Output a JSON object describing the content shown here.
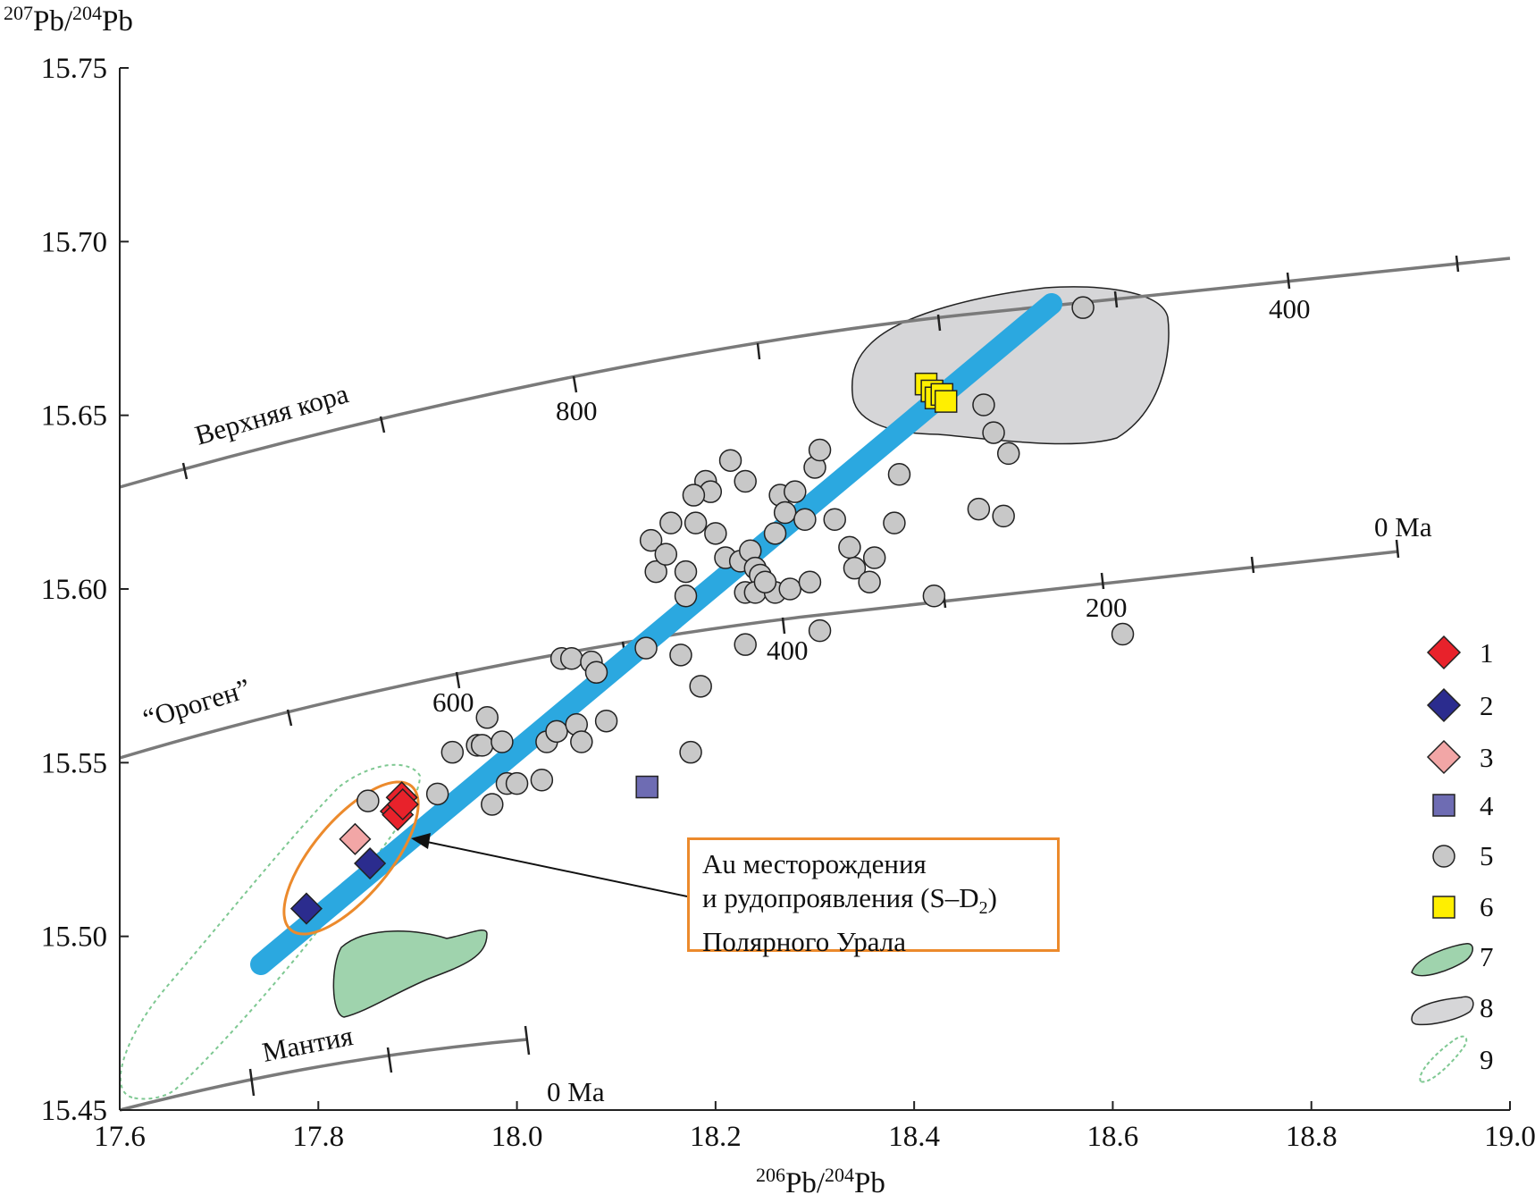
{
  "chart_data": {
    "type": "scatter",
    "xlabel": "206Pb/204Pb",
    "ylabel": "207Pb/204Pb",
    "xlabel_parts": {
      "sup": "206",
      "a": "Pb/",
      "sup2": "204",
      "b": "Pb"
    },
    "ylabel_parts": {
      "sup": "207",
      "a": "Pb/",
      "sup2": "204",
      "b": "Pb"
    },
    "xlim": [
      17.6,
      19.0
    ],
    "ylim": [
      15.45,
      15.75
    ],
    "x_ticks": [
      "17.6",
      "17.8",
      "18.0",
      "18.2",
      "18.4",
      "18.6",
      "18.8",
      "19.0"
    ],
    "y_ticks": [
      "15.45",
      "15.50",
      "15.55",
      "15.60",
      "15.65",
      "15.70",
      "15.75"
    ],
    "grid": false,
    "legend_position": "right",
    "series": [
      {
        "name": "1",
        "marker": "diamond",
        "color": "#e8222b",
        "x": [
          17.884,
          17.878,
          17.88,
          17.885
        ],
        "y": [
          15.54,
          15.536,
          15.535,
          15.538
        ]
      },
      {
        "name": "2",
        "marker": "diamond",
        "color": "#2b2c8e",
        "x": [
          17.788,
          17.852
        ],
        "y": [
          15.508,
          15.521
        ]
      },
      {
        "name": "3",
        "marker": "diamond",
        "color": "#f2a6a6",
        "x": [
          17.837
        ],
        "y": [
          15.528
        ]
      },
      {
        "name": "4",
        "marker": "square",
        "color": "#6e6cb3",
        "x": [
          18.131
        ],
        "y": [
          15.543
        ]
      },
      {
        "name": "5",
        "marker": "circle",
        "color": "#c8c8c8",
        "x": [
          17.85,
          17.92,
          17.935,
          17.96,
          17.965,
          17.97,
          17.975,
          17.985,
          17.99,
          18.0,
          18.025,
          18.03,
          18.04,
          18.045,
          18.055,
          18.06,
          18.065,
          18.075,
          18.08,
          18.09,
          18.13,
          18.135,
          18.14,
          18.15,
          18.155,
          18.165,
          18.17,
          18.175,
          18.18,
          18.185,
          18.19,
          18.195,
          18.2,
          18.21,
          18.215,
          18.225,
          18.23,
          18.235,
          18.24,
          18.245,
          18.23,
          18.24,
          18.23,
          18.26,
          18.265,
          18.27,
          18.26,
          18.275,
          18.28,
          18.29,
          18.295,
          18.3,
          18.305,
          18.32,
          18.335,
          18.34,
          18.355,
          18.36,
          18.38,
          18.385,
          18.42,
          18.465,
          18.47,
          18.48,
          18.49,
          18.495,
          18.57,
          18.61,
          18.178,
          18.17,
          18.305,
          18.25
        ],
        "y": [
          15.539,
          15.541,
          15.553,
          15.555,
          15.555,
          15.563,
          15.538,
          15.556,
          15.544,
          15.544,
          15.545,
          15.556,
          15.559,
          15.58,
          15.58,
          15.561,
          15.556,
          15.579,
          15.576,
          15.562,
          15.583,
          15.614,
          15.605,
          15.61,
          15.619,
          15.581,
          15.605,
          15.553,
          15.619,
          15.572,
          15.631,
          15.628,
          15.616,
          15.609,
          15.637,
          15.608,
          15.631,
          15.611,
          15.606,
          15.604,
          15.599,
          15.599,
          15.584,
          15.616,
          15.627,
          15.622,
          15.599,
          15.6,
          15.628,
          15.62,
          15.602,
          15.635,
          15.64,
          15.62,
          15.612,
          15.606,
          15.602,
          15.609,
          15.619,
          15.633,
          15.598,
          15.623,
          15.653,
          15.645,
          15.621,
          15.639,
          15.681,
          15.587,
          15.627,
          15.598,
          15.588,
          15.602
        ]
      },
      {
        "name": "6",
        "marker": "square",
        "color": "#ffef00",
        "x": [
          18.412,
          18.418,
          18.422,
          18.428,
          18.432
        ],
        "y": [
          15.659,
          15.657,
          15.655,
          15.656,
          15.654
        ]
      }
    ],
    "reference_curves": [
      {
        "label": "Верхняя кора",
        "tick_labels": [
          "800",
          "400"
        ]
      },
      {
        "label": "“Ороген”",
        "tick_labels": [
          "600",
          "400",
          "200",
          "0 Ma"
        ]
      },
      {
        "label": "Мантия",
        "tick_labels": [
          "0 Ma"
        ]
      }
    ],
    "legend": [
      "1",
      "2",
      "3",
      "4",
      "5",
      "6",
      "7",
      "8",
      "9"
    ],
    "annotation": {
      "line1": "Au месторождения",
      "line2": "и рудопроявления (S–D",
      "line2_sub": "2",
      "line2_end": ")",
      "line3": "Полярного Урала"
    },
    "colors": {
      "trend": "#2ba8e0",
      "field7": "#9fd3ad",
      "field8": "#d6d6d8",
      "field9_outline": "#7ec892",
      "callout_border": "#ec8a2c",
      "curve": "#7a7a7a"
    }
  }
}
